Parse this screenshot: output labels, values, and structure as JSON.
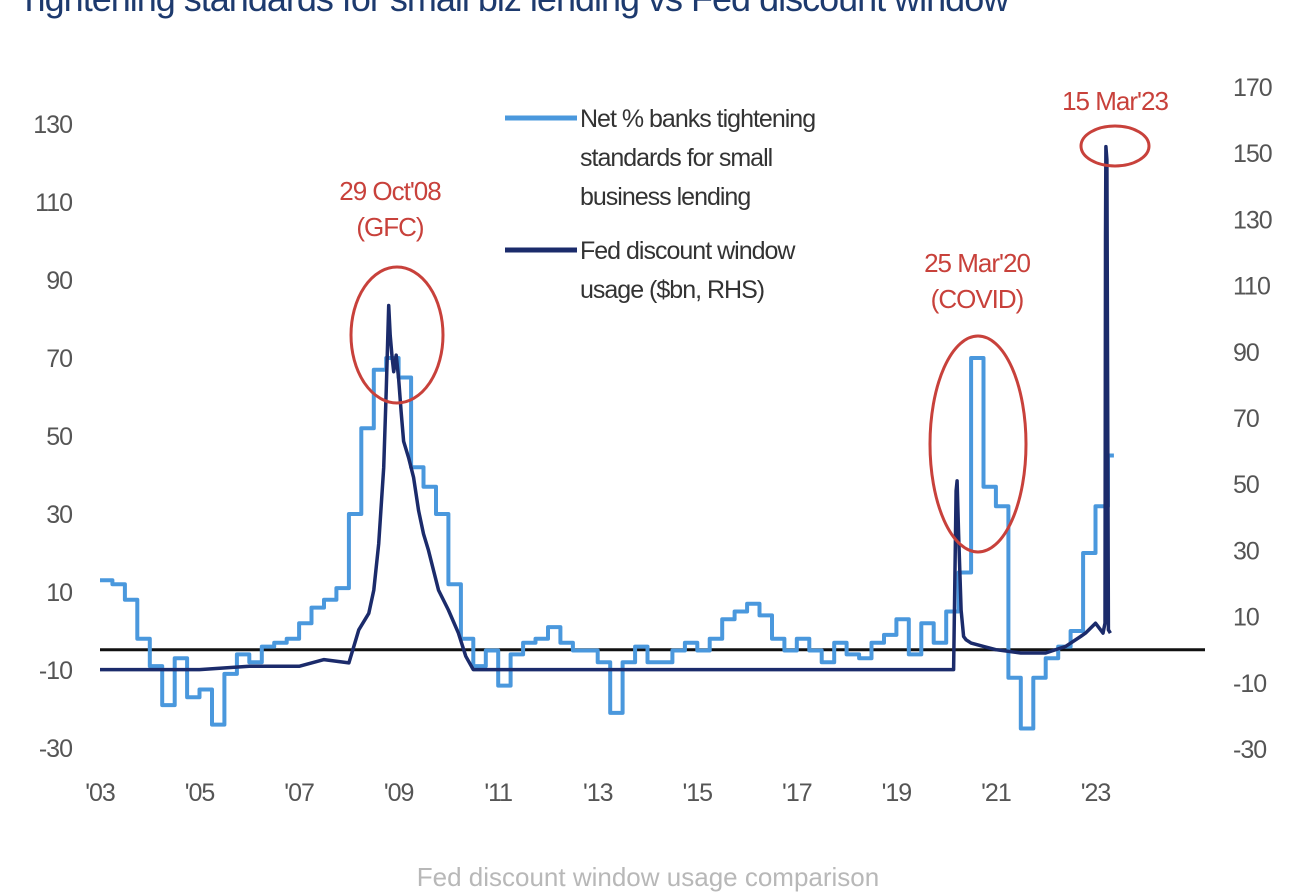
{
  "page_title": "Tightening standards for small biz lending vs Fed discount window",
  "caption": "Fed discount window usage comparison",
  "chart_data": {
    "type": "line",
    "title": "Tightening standards for small biz lending vs Fed discount window",
    "x_ticks": [
      "'03",
      "'05",
      "'07",
      "'09",
      "'11",
      "'13",
      "'15",
      "'17",
      "'19",
      "'21",
      "'23"
    ],
    "x_range": [
      2003.0,
      2025.2
    ],
    "y_left": {
      "ticks": [
        "130",
        "110",
        "90",
        "70",
        "50",
        "30",
        "10",
        "-10",
        "-30"
      ],
      "range": [
        -30,
        140
      ]
    },
    "y_right": {
      "ticks": [
        "170",
        "150",
        "130",
        "110",
        "90",
        "70",
        "50",
        "30",
        "10",
        "-10",
        "-30"
      ],
      "range": [
        -30,
        170
      ]
    },
    "grid": false,
    "zero_line_right": 0,
    "series": [
      {
        "name": "Net % banks tightening standards for small business lending",
        "axis": "left",
        "color": "#4a98dd",
        "step": true,
        "x": [
          2003.0,
          2003.25,
          2003.5,
          2003.75,
          2004.0,
          2004.25,
          2004.5,
          2004.75,
          2005.0,
          2005.25,
          2005.5,
          2005.75,
          2006.0,
          2006.25,
          2006.5,
          2006.75,
          2007.0,
          2007.25,
          2007.5,
          2007.75,
          2008.0,
          2008.25,
          2008.5,
          2008.75,
          2009.0,
          2009.25,
          2009.5,
          2009.75,
          2010.0,
          2010.25,
          2010.5,
          2010.75,
          2011.0,
          2011.25,
          2011.5,
          2011.75,
          2012.0,
          2012.25,
          2012.5,
          2012.75,
          2013.0,
          2013.25,
          2013.5,
          2013.75,
          2014.0,
          2014.25,
          2014.5,
          2014.75,
          2015.0,
          2015.25,
          2015.5,
          2015.75,
          2016.0,
          2016.25,
          2016.5,
          2016.75,
          2017.0,
          2017.25,
          2017.5,
          2017.75,
          2018.0,
          2018.25,
          2018.5,
          2018.75,
          2019.0,
          2019.25,
          2019.5,
          2019.75,
          2020.0,
          2020.25,
          2020.5,
          2020.75,
          2021.0,
          2021.25,
          2021.5,
          2021.75,
          2022.0,
          2022.25,
          2022.5,
          2022.75,
          2023.0,
          2023.25
        ],
        "values": [
          13,
          12,
          8,
          -2,
          -9,
          -19,
          -7,
          -17,
          -15,
          -24,
          -11,
          -6,
          -8,
          -4,
          -3,
          -2,
          2,
          6,
          8,
          11,
          30,
          52,
          67,
          70,
          65,
          42,
          37,
          30,
          12,
          -2,
          -9,
          -5,
          -14,
          -6,
          -3,
          -2,
          1,
          -3,
          -5,
          -5,
          -8,
          -21,
          -8,
          -4,
          -8,
          -8,
          -5,
          -3,
          -5,
          -2,
          3,
          5,
          7,
          4,
          -2,
          -5,
          -2,
          -5,
          -8,
          -3,
          -6,
          -7,
          -3,
          -1,
          3,
          -6,
          2,
          -3,
          5,
          15,
          70,
          37,
          32,
          -12,
          -25,
          -12,
          -7,
          -4,
          0,
          20,
          32,
          45
        ]
      },
      {
        "name": "Fed discount window usage ($bn, RHS)",
        "axis": "right",
        "color": "#1b2b6b",
        "step": false,
        "x": [
          2003.0,
          2005.0,
          2006.0,
          2007.0,
          2007.5,
          2008.0,
          2008.2,
          2008.4,
          2008.5,
          2008.6,
          2008.7,
          2008.75,
          2008.8,
          2008.83,
          2008.87,
          2008.9,
          2008.95,
          2009.0,
          2009.05,
          2009.1,
          2009.2,
          2009.3,
          2009.4,
          2009.5,
          2009.6,
          2009.7,
          2009.8,
          2010.0,
          2010.2,
          2010.35,
          2010.5,
          2011.0,
          2014.0,
          2016.0,
          2018.0,
          2020.15,
          2020.2,
          2020.22,
          2020.25,
          2020.3,
          2020.35,
          2020.4,
          2020.5,
          2020.75,
          2021.0,
          2021.5,
          2022.0,
          2022.4,
          2022.7,
          2022.8,
          2023.0,
          2023.15,
          2023.19,
          2023.2,
          2023.21,
          2023.23,
          2023.26,
          2023.3
        ],
        "values": [
          -6,
          -6,
          -5,
          -5,
          -3,
          -4,
          6,
          11,
          18,
          32,
          55,
          78,
          104,
          95,
          88,
          84,
          89,
          82,
          72,
          63,
          58,
          52,
          42,
          35,
          30,
          24,
          18,
          12,
          5,
          -2,
          -6,
          -6,
          -6,
          -6,
          -6,
          -6,
          48,
          51,
          35,
          12,
          4,
          3,
          2,
          1,
          0,
          -1,
          -1,
          1,
          4,
          5,
          8,
          5,
          8,
          125,
          152,
          148,
          6,
          5
        ]
      }
    ],
    "legend": {
      "placement": "top-center",
      "entries": [
        {
          "lines": [
            "Net % banks tightening",
            "standards for small",
            "business lending"
          ],
          "color": "#4a98dd"
        },
        {
          "lines": [
            "Fed discount window",
            "usage ($bn, RHS)"
          ],
          "color": "#1b2b6b"
        }
      ]
    },
    "annotations": [
      {
        "lines": [
          "29 Oct'08",
          "(GFC)"
        ],
        "x": 2008.9,
        "color": "#c8413b"
      },
      {
        "lines": [
          "25 Mar'20",
          "(COVID)"
        ],
        "x": 2020.5,
        "color": "#c8413b"
      },
      {
        "lines": [
          "15 Mar'23"
        ],
        "x": 2023.2,
        "color": "#c8413b"
      }
    ]
  }
}
